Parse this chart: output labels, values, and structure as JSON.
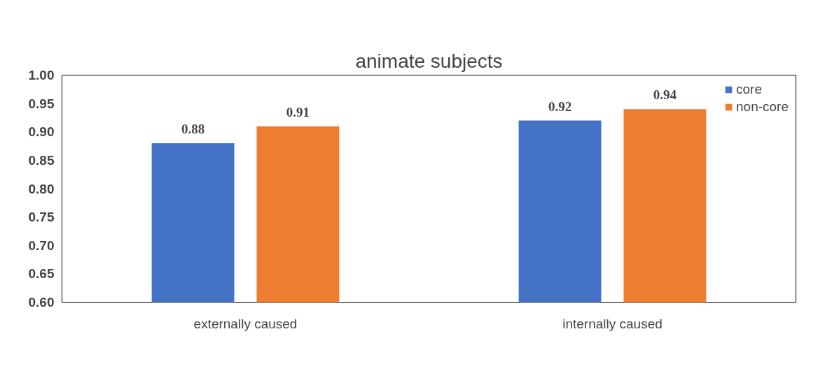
{
  "chart_data": {
    "type": "bar",
    "title": "animate subjects",
    "categories": [
      "externally caused",
      "internally caused"
    ],
    "series": [
      {
        "name": "core",
        "color": "#4472c4",
        "values": [
          0.88,
          0.92
        ]
      },
      {
        "name": "non-core",
        "color": "#ed7d31",
        "values": [
          0.91,
          0.94
        ]
      }
    ],
    "ylim": [
      0.6,
      1.0
    ],
    "yticks": [
      {
        "value": 0.6,
        "label": "0.60"
      },
      {
        "value": 0.65,
        "label": "0.65"
      },
      {
        "value": 0.7,
        "label": "0.70"
      },
      {
        "value": 0.75,
        "label": "0.75"
      },
      {
        "value": 0.8,
        "label": "0.80"
      },
      {
        "value": 0.85,
        "label": "0.85"
      },
      {
        "value": 0.9,
        "label": "0.90"
      },
      {
        "value": 0.95,
        "label": "0.95"
      },
      {
        "value": 1.0,
        "label": "1.00"
      }
    ],
    "data_labels": true,
    "grid": false,
    "legend": "top right"
  }
}
